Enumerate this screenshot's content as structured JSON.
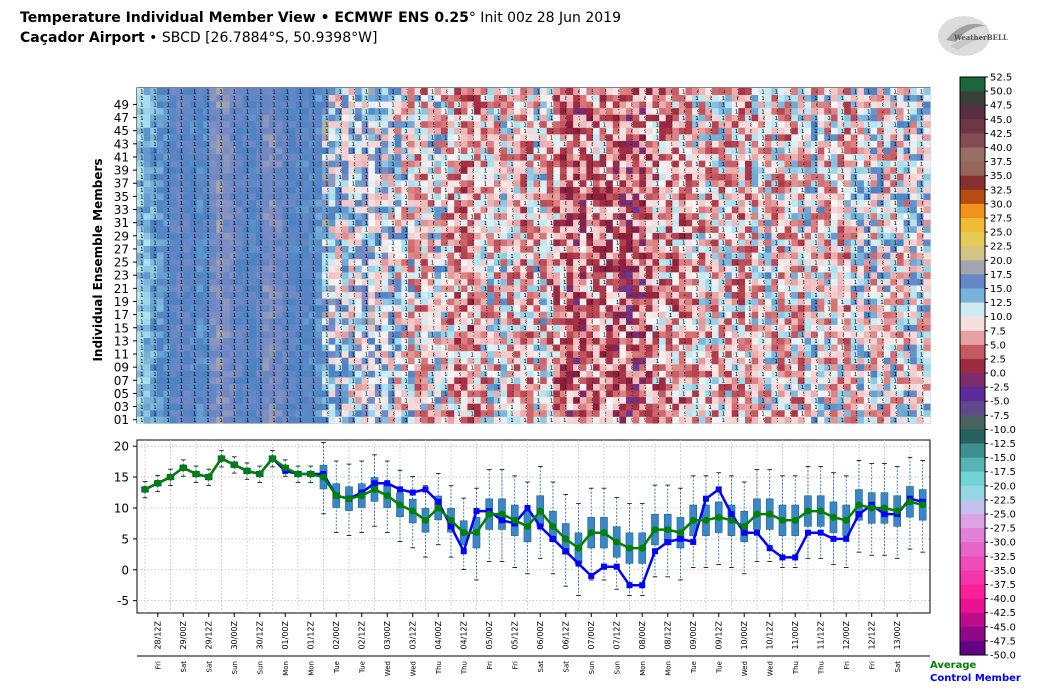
{
  "header": {
    "title_bold": "Temperature Individual Member View • ECMWF ENS 0.25",
    "title_deg": "°",
    "title_rest": " Init 00z 28 Jun 2019",
    "location_bold": "Caçador Airport",
    "location_rest": " • SBCD [26.7884°S, 50.9398°W]",
    "logo_text": "WeatherBELL"
  },
  "colors": {
    "average": "#008000",
    "control": "#0000ff",
    "box": "#3a87c8",
    "box_edge": "#1f5f94",
    "grid": "#bbbbbb"
  },
  "chart_data": [
    {
      "type": "heatmap",
      "ylabel": "Individual Ensemble Members",
      "members_count": 51,
      "y_tick_labels": [
        "01",
        "03",
        "05",
        "07",
        "09",
        "11",
        "13",
        "15",
        "17",
        "19",
        "21",
        "23",
        "25",
        "27",
        "29",
        "31",
        "33",
        "35",
        "37",
        "39",
        "41",
        "43",
        "45",
        "47",
        "49"
      ],
      "steps": 120,
      "colorbar_ticks": [
        "52.5",
        "50.0",
        "47.5",
        "45.0",
        "42.5",
        "40.0",
        "37.5",
        "35.0",
        "32.5",
        "30.0",
        "27.5",
        "25.0",
        "22.5",
        "20.0",
        "17.5",
        "15.0",
        "12.5",
        "10.0",
        "7.5",
        "5.0",
        "2.5",
        "0.0",
        "-2.5",
        "-5.0",
        "-7.5",
        "-10.0",
        "-12.5",
        "-15.0",
        "-17.5",
        "-20.0",
        "-22.5",
        "-25.0",
        "-27.5",
        "-30.0",
        "-32.5",
        "-35.0",
        "-37.5",
        "-40.0",
        "-42.5",
        "-45.0",
        "-47.5",
        "-50.0"
      ],
      "colorbar_range": [
        -50,
        52.5
      ]
    },
    {
      "type": "line",
      "ylim": [
        -7,
        21
      ],
      "y_ticks": [
        "20",
        "15",
        "10",
        "5",
        "0",
        "-5"
      ],
      "grid": true,
      "x_tick_labels": [
        "28/12Z",
        "29/00Z",
        "29/12Z",
        "30/00Z",
        "30/12Z",
        "01/00Z",
        "01/12Z",
        "02/00Z",
        "02/12Z",
        "03/00Z",
        "03/12Z",
        "04/00Z",
        "04/12Z",
        "05/00Z",
        "05/12Z",
        "06/00Z",
        "06/12Z",
        "07/00Z",
        "07/12Z",
        "08/00Z",
        "08/12Z",
        "09/00Z",
        "09/12Z",
        "10/00Z",
        "10/12Z",
        "11/00Z",
        "11/12Z",
        "12/00Z",
        "12/12Z",
        "13/00Z"
      ],
      "day_labels": [
        "Fri",
        "Sat",
        "Sat",
        "Sun",
        "Sun",
        "Mon",
        "Mon",
        "Tue",
        "Tue",
        "Wed",
        "Wed",
        "Thu",
        "Thu",
        "Fri",
        "Fri",
        "Sat",
        "Sat",
        "Sun",
        "Sun",
        "Mon",
        "Mon",
        "Tue",
        "Tue",
        "Wed",
        "Wed",
        "Thu",
        "Thu",
        "Fri",
        "Fri",
        "Sat"
      ],
      "series": [
        {
          "name": "Average",
          "values": [
            13,
            14,
            15,
            16.5,
            15.5,
            15,
            18,
            17,
            16,
            15.5,
            18,
            16.5,
            15.5,
            15.5,
            15,
            12,
            11.5,
            12,
            13,
            12,
            10.5,
            9.5,
            8,
            10,
            8,
            6,
            6,
            9,
            9,
            8,
            7,
            9.5,
            7,
            5,
            3.5,
            6,
            6,
            4.5,
            3.5,
            3.5,
            6.5,
            6.5,
            6,
            8,
            8,
            8.5,
            8,
            7,
            9,
            9,
            8,
            8,
            9.5,
            9.5,
            8.5,
            8,
            10.5,
            10,
            10,
            9.5,
            11,
            10.5
          ]
        },
        {
          "name": "Control Member",
          "values": [
            13,
            14,
            15,
            16.5,
            15.5,
            15,
            18,
            17,
            16,
            15.5,
            18,
            16,
            15.5,
            15.5,
            15.5,
            12,
            11.5,
            12.5,
            14,
            14,
            13,
            12.5,
            13,
            11,
            7,
            3,
            9.5,
            9.5,
            8,
            7.5,
            10,
            7,
            5,
            3,
            1,
            -1,
            0.5,
            0.5,
            -2.5,
            -2.5,
            3,
            4.5,
            5,
            4.5,
            11.5,
            13,
            9,
            6,
            6,
            3.5,
            2,
            2,
            6,
            6,
            5,
            5,
            9,
            10.5,
            9,
            9,
            11.5,
            11
          ]
        }
      ]
    }
  ],
  "legend": {
    "average": "Average",
    "control": "Control Member"
  }
}
